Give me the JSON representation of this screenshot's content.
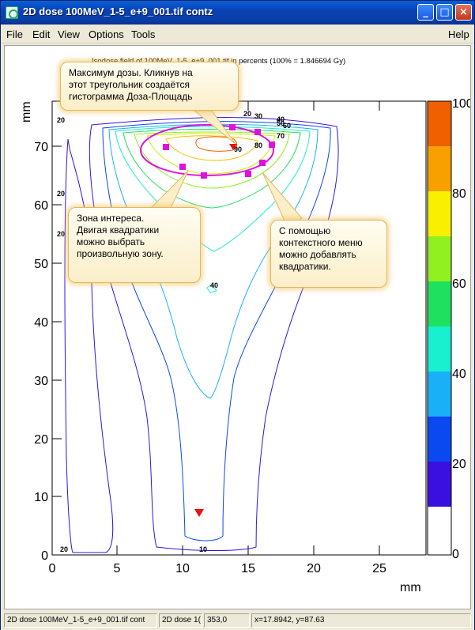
{
  "window": {
    "title": "2D dose 100MeV_1-5_e+9_001.tif contz"
  },
  "titlebar_buttons": {
    "minimize": "_",
    "maximize": "□",
    "close": "×"
  },
  "menu": {
    "file": "File",
    "edit": "Edit",
    "view": "View",
    "options": "Options",
    "tools": "Tools",
    "help": "Help"
  },
  "plot": {
    "title": "Isodose field of 100MeV_1-5_e+9_001.tif in percents (100% = 1.846694 Gy)",
    "xlabel": "mm",
    "ylabel": "mm",
    "xticks": [
      "0",
      "5",
      "10",
      "15",
      "20",
      "25"
    ],
    "yticks": [
      "0",
      "10",
      "20",
      "30",
      "40",
      "50",
      "60",
      "70"
    ],
    "colorbar_ticks": [
      "0",
      "20",
      "40",
      "60",
      "80",
      "100"
    ],
    "contour_labels": [
      {
        "text": "20",
        "id": "a"
      },
      {
        "text": "20",
        "id": "b"
      },
      {
        "text": "20",
        "id": "c"
      },
      {
        "text": "20",
        "id": "d"
      },
      {
        "text": "20",
        "id": "e"
      },
      {
        "text": "30",
        "id": "f"
      },
      {
        "text": "40",
        "id": "g"
      },
      {
        "text": "50",
        "id": "h"
      },
      {
        "text": "60",
        "id": "i"
      },
      {
        "text": "70",
        "id": "j"
      },
      {
        "text": "80",
        "id": "k"
      },
      {
        "text": "90",
        "id": "l"
      },
      {
        "text": "40",
        "id": "m"
      },
      {
        "text": "10",
        "id": "n"
      }
    ],
    "colorbar_colors": [
      "#ffffff",
      "#3a10e0",
      "#0a48f0",
      "#1ab0f8",
      "#18f0d0",
      "#20e060",
      "#90f020",
      "#f8f000",
      "#f8a000",
      "#f06000"
    ]
  },
  "callouts": {
    "dose_max": "Максимум дозы. Кликнув на\nэтот треугольник создаётся\nгистограмма Доза-Площадь",
    "roi": "Зона интереса.\nДвигая квадратики\nможно выбрать\nпроизвольную зону.",
    "context_menu": "С помощью\nконтекстного меню\nможно добавлять\nквадратики."
  },
  "status": {
    "canvas_name": "2D dose 100MeV_1-5_e+9_001.tif cont",
    "object": "2D dose 1(",
    "pixel": "353,0",
    "coords": "x=17.8942, y=87.63"
  }
}
